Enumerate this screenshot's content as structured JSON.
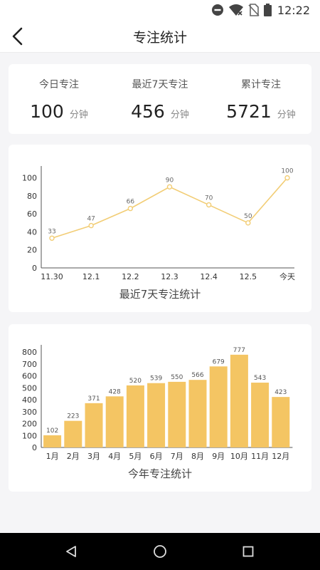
{
  "status_bar": {
    "time": "12:22",
    "icons": [
      "do-not-disturb-icon",
      "wifi-icon",
      "no-sim-icon",
      "battery-icon"
    ]
  },
  "header": {
    "title": "专注统计",
    "back_icon": "back-arrow-icon"
  },
  "summary": {
    "items": [
      {
        "label": "今日专注",
        "value": "100",
        "unit": "分钟"
      },
      {
        "label": "最近7天专注",
        "value": "456",
        "unit": "分钟"
      },
      {
        "label": "累计专注",
        "value": "5721",
        "unit": "分钟"
      }
    ]
  },
  "colors": {
    "line": "#f2cd75",
    "bar": "#f4c563",
    "axis": "#666666"
  },
  "chart_data": [
    {
      "type": "line",
      "title": "最近7天专注统计",
      "categories": [
        "11.30",
        "12.1",
        "12.2",
        "12.3",
        "12.4",
        "12.5",
        "今天"
      ],
      "values": [
        33,
        47,
        66,
        90,
        70,
        50,
        100
      ],
      "y_ticks": [
        "0",
        "20",
        "40",
        "60",
        "80",
        "100"
      ],
      "ylim": [
        0,
        110
      ],
      "grid": false
    },
    {
      "type": "bar",
      "title": "今年专注统计",
      "categories": [
        "1月",
        "2月",
        "3月",
        "4月",
        "5月",
        "6月",
        "7月",
        "8月",
        "9月",
        "10月",
        "11月",
        "12月"
      ],
      "values": [
        102,
        223,
        371,
        428,
        520,
        539,
        550,
        566,
        679,
        777,
        543,
        423
      ],
      "y_ticks": [
        "0",
        "100",
        "200",
        "300",
        "400",
        "500",
        "600",
        "700",
        "800"
      ],
      "ylim": [
        0,
        800
      ],
      "grid": false
    }
  ],
  "android_nav": {
    "icons": [
      "back-triangle-icon",
      "home-circle-icon",
      "recents-square-icon"
    ]
  }
}
